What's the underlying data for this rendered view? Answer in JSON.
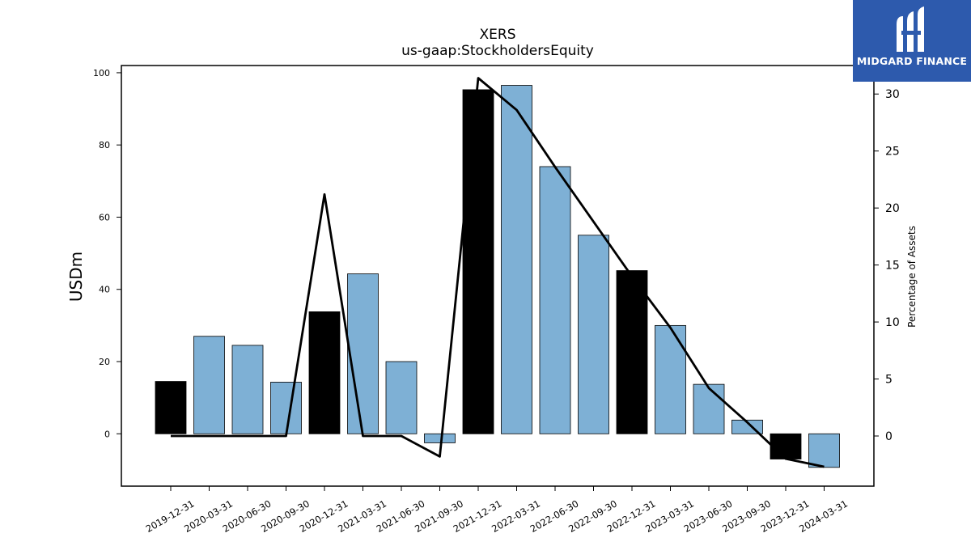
{
  "chart_data": {
    "type": "bar",
    "title": "XERS",
    "subtitle": "us-gaap:StockholdersEquity",
    "ylabel": "USDm",
    "y2label": "Percentage of Assets",
    "categories": [
      "2019-12-31",
      "2020-03-31",
      "2020-06-30",
      "2020-09-30",
      "2020-12-31",
      "2021-03-31",
      "2021-06-30",
      "2021-09-30",
      "2021-12-31",
      "2022-03-31",
      "2022-06-30",
      "2022-09-30",
      "2022-12-31",
      "2023-03-31",
      "2023-06-30",
      "2023-09-30",
      "2023-12-31",
      "2024-03-31"
    ],
    "series": [
      {
        "type": "bar",
        "values": [
          14.5,
          27.0,
          24.5,
          14.3,
          33.8,
          44.3,
          20.0,
          -2.5,
          95.3,
          96.5,
          74.0,
          55.0,
          45.2,
          30.0,
          13.7,
          3.8,
          -7.0,
          -9.3
        ],
        "highlight": [
          true,
          false,
          false,
          false,
          true,
          false,
          false,
          false,
          true,
          false,
          false,
          false,
          true,
          false,
          false,
          false,
          true,
          false
        ]
      },
      {
        "type": "line",
        "axis": "right",
        "values": [
          0.0,
          0.0,
          0.0,
          0.0,
          21.2,
          0.0,
          0.0,
          -1.8,
          31.4,
          28.6,
          23.6,
          18.8,
          14.0,
          9.5,
          4.2,
          1.2,
          -2.0,
          -2.7
        ]
      }
    ],
    "yticks": [
      0,
      20,
      40,
      60,
      80,
      100
    ],
    "y2ticks": [
      0,
      5,
      10,
      15,
      20,
      25,
      30
    ],
    "ylim": [
      -14.5,
      102
    ],
    "y2lim": [
      -4.4,
      32.5
    ],
    "grid": false,
    "colors": {
      "bar": "#7eb0d5",
      "highlight_bar": "#000000",
      "line": "#000000"
    }
  },
  "logo": {
    "text": "MIDGARD FINANCE",
    "color": "#2d5aad"
  }
}
